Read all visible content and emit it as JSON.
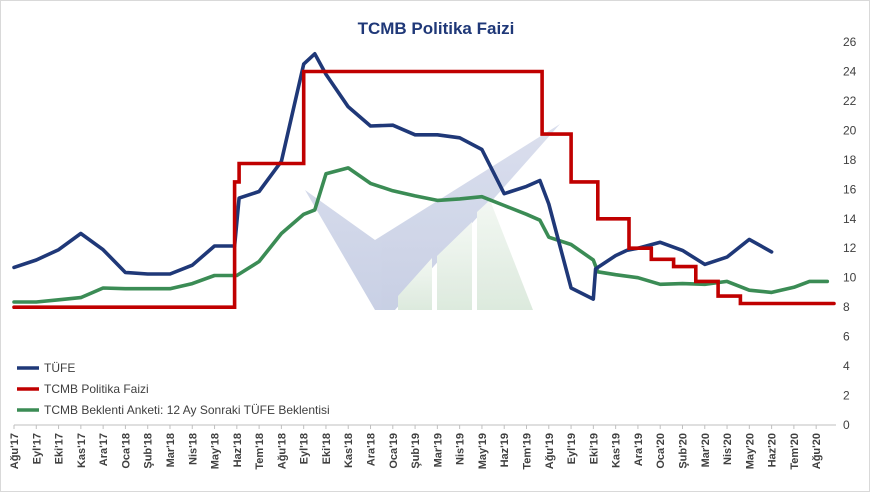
{
  "chart_data": {
    "type": "line",
    "title": "TCMB Politika Faizi",
    "xlabel": "",
    "ylabel": "",
    "ylim": [
      0,
      26
    ],
    "yticks": [
      0,
      2,
      4,
      6,
      8,
      10,
      12,
      14,
      16,
      18,
      20,
      22,
      24,
      26
    ],
    "y_axis_side": "right",
    "legend_position": "bottom-left",
    "grid": false,
    "x_tick_labels": [
      "Ağu'17",
      "Eyl'17",
      "Eki'17",
      "Kas'17",
      "Ara'17",
      "Oca'18",
      "Şub'18",
      "Mar'18",
      "Nis'18",
      "May'18",
      "Haz'18",
      "Tem'18",
      "Ağu'18",
      "Eyl'18",
      "Eki'18",
      "Kas'18",
      "Ara'18",
      "Oca'19",
      "Şub'19",
      "Mar'19",
      "Nis'19",
      "May'19",
      "Haz'19",
      "Tem'19",
      "Ağu'19",
      "Eyl'19",
      "Eki'19",
      "Kas'19",
      "Ara'19",
      "Oca'20",
      "Şub'20",
      "Mar'20",
      "Nis'20",
      "May'20",
      "Haz'20",
      "Tem'20",
      "Ağu'20"
    ],
    "x_range": [
      0,
      36.8
    ],
    "series": [
      {
        "name": "TÜFE",
        "color": "#1f3878",
        "step": false,
        "points": [
          [
            0,
            10.7
          ],
          [
            1,
            11.2
          ],
          [
            2,
            11.9
          ],
          [
            3,
            13.0
          ],
          [
            4,
            11.9
          ],
          [
            5,
            10.35
          ],
          [
            6,
            10.25
          ],
          [
            7,
            10.25
          ],
          [
            8,
            10.85
          ],
          [
            9,
            12.15
          ],
          [
            9.9,
            12.15
          ],
          [
            10.1,
            15.4
          ],
          [
            11,
            15.85
          ],
          [
            12,
            17.9
          ],
          [
            13,
            24.5
          ],
          [
            13.5,
            25.2
          ],
          [
            14,
            23.8
          ],
          [
            15,
            21.6
          ],
          [
            16,
            20.3
          ],
          [
            17,
            20.35
          ],
          [
            18,
            19.7
          ],
          [
            19,
            19.7
          ],
          [
            20,
            19.5
          ],
          [
            21,
            18.7
          ],
          [
            22,
            15.7
          ],
          [
            23,
            16.2
          ],
          [
            23.6,
            16.6
          ],
          [
            24,
            15.0
          ],
          [
            25,
            9.3
          ],
          [
            26,
            8.55
          ],
          [
            26.1,
            10.6
          ],
          [
            27,
            11.5
          ],
          [
            27.5,
            11.85
          ],
          [
            28,
            12.0
          ],
          [
            29,
            12.4
          ],
          [
            30,
            11.85
          ],
          [
            31,
            10.9
          ],
          [
            32,
            11.4
          ],
          [
            33,
            12.6
          ],
          [
            34,
            11.75
          ]
        ]
      },
      {
        "name": "TCMB Politika Faizi",
        "color": "#c00000",
        "step": true,
        "points": [
          [
            0,
            8.0
          ],
          [
            9.9,
            8.0
          ],
          [
            9.9,
            16.5
          ],
          [
            10.1,
            16.5
          ],
          [
            10.1,
            17.75
          ],
          [
            13,
            17.75
          ],
          [
            13,
            24.0
          ],
          [
            23.7,
            24.0
          ],
          [
            23.7,
            19.75
          ],
          [
            25,
            19.75
          ],
          [
            25,
            16.5
          ],
          [
            26.2,
            16.5
          ],
          [
            26.2,
            14.0
          ],
          [
            27.6,
            14.0
          ],
          [
            27.6,
            12.0
          ],
          [
            28.6,
            12.0
          ],
          [
            28.6,
            11.25
          ],
          [
            29.6,
            11.25
          ],
          [
            29.6,
            10.75
          ],
          [
            30.6,
            10.75
          ],
          [
            30.6,
            9.75
          ],
          [
            31.6,
            9.75
          ],
          [
            31.6,
            8.75
          ],
          [
            32.6,
            8.75
          ],
          [
            32.6,
            8.25
          ],
          [
            36.8,
            8.25
          ]
        ]
      },
      {
        "name": "TCMB Beklenti Anketi: 12 Ay Sonraki TÜFE Beklentisi",
        "color": "#3b8c55",
        "step": false,
        "points": [
          [
            0,
            8.35
          ],
          [
            1,
            8.35
          ],
          [
            2,
            8.5
          ],
          [
            3,
            8.65
          ],
          [
            4,
            9.3
          ],
          [
            5,
            9.25
          ],
          [
            6,
            9.25
          ],
          [
            7,
            9.25
          ],
          [
            8,
            9.6
          ],
          [
            9,
            10.15
          ],
          [
            10,
            10.15
          ],
          [
            11,
            11.1
          ],
          [
            12,
            13.0
          ],
          [
            13,
            14.3
          ],
          [
            13.5,
            14.6
          ],
          [
            14,
            17.05
          ],
          [
            15,
            17.45
          ],
          [
            16,
            16.4
          ],
          [
            17,
            15.9
          ],
          [
            18,
            15.55
          ],
          [
            19,
            15.25
          ],
          [
            20,
            15.35
          ],
          [
            21,
            15.5
          ],
          [
            22,
            14.9
          ],
          [
            23,
            14.3
          ],
          [
            23.6,
            13.9
          ],
          [
            24,
            12.75
          ],
          [
            25,
            12.25
          ],
          [
            26,
            11.2
          ],
          [
            26.2,
            10.4
          ],
          [
            27,
            10.2
          ],
          [
            28,
            10.0
          ],
          [
            29,
            9.55
          ],
          [
            30,
            9.6
          ],
          [
            31,
            9.55
          ],
          [
            32,
            9.75
          ],
          [
            33,
            9.15
          ],
          [
            34,
            9.0
          ],
          [
            35,
            9.35
          ],
          [
            35.7,
            9.75
          ],
          [
            36.5,
            9.75
          ]
        ]
      }
    ]
  }
}
